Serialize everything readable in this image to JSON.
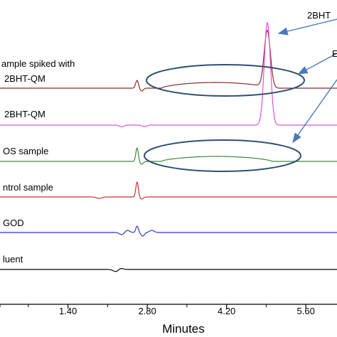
{
  "chart_data": {
    "type": "line",
    "title": "",
    "xlabel": "Minutes",
    "ylabel": "",
    "xlim": [
      0.2,
      6.15
    ],
    "x_ticks": [
      1.4,
      2.8,
      4.2,
      5.6
    ],
    "x_tick_labels": [
      "1.40",
      "2.80",
      "4.20",
      "5.60"
    ],
    "grid": false,
    "legend": "none",
    "series": [
      {
        "name": "ample spiked with\n2BHT-QM",
        "color": "#8b2b2b",
        "baseline": 124,
        "peaks": [
          {
            "x": 2.62,
            "h": -11,
            "w": 0.025
          },
          {
            "x": 2.7,
            "h": 4,
            "w": 0.03
          },
          {
            "x": 4.92,
            "h": -80,
            "w": 0.055
          }
        ],
        "hump": {
          "x0": 3.05,
          "x1": 4.95,
          "h": -8
        }
      },
      {
        "name": "2BHT-QM",
        "color": "#e44fd7",
        "baseline": 176,
        "peaks": [
          {
            "x": 4.92,
            "h": -144,
            "w": 0.055
          },
          {
            "x": 2.35,
            "h": 2,
            "w": 0.04
          },
          {
            "x": 2.75,
            "h": 2,
            "w": 0.04
          }
        ],
        "hump": null
      },
      {
        "name": "OS sample",
        "color": "#3d8a3d",
        "baseline": 227,
        "peaks": [
          {
            "x": 2.62,
            "h": -19,
            "w": 0.022
          },
          {
            "x": 2.7,
            "h": 4,
            "w": 0.03
          }
        ],
        "hump": {
          "x0": 3.05,
          "x1": 5.0,
          "h": -7
        }
      },
      {
        "name": "ntrol sample",
        "color": "#cc3333",
        "baseline": 277,
        "peaks": [
          {
            "x": 2.62,
            "h": -21,
            "w": 0.022
          },
          {
            "x": 2.7,
            "h": 3,
            "w": 0.03
          },
          {
            "x": 1.95,
            "h": 2,
            "w": 0.05
          }
        ],
        "hump": null
      },
      {
        "name": "GOD",
        "color": "#3333cc",
        "baseline": 327,
        "peaks": [
          {
            "x": 2.35,
            "h": 3,
            "w": 0.04
          },
          {
            "x": 2.45,
            "h": -3,
            "w": 0.04
          },
          {
            "x": 2.62,
            "h": -9,
            "w": 0.022
          },
          {
            "x": 2.72,
            "h": 5,
            "w": 0.03
          },
          {
            "x": 2.88,
            "h": -3,
            "w": 0.04
          }
        ],
        "hump": null
      },
      {
        "name": "luent",
        "color": "#000000",
        "baseline": 379,
        "peaks": [
          {
            "x": 2.25,
            "h": 3,
            "w": 0.05
          },
          {
            "x": 2.33,
            "h": -2,
            "w": 0.04
          }
        ],
        "hump": null
      }
    ],
    "annotations": [
      {
        "text": "2BHT",
        "target": "2bht-peak"
      },
      {
        "text": "E",
        "target": "ellipses"
      }
    ]
  }
}
